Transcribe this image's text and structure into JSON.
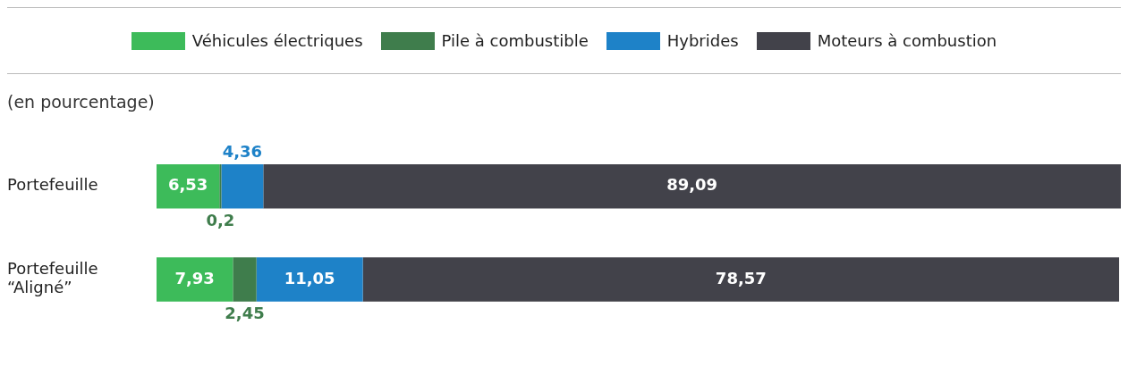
{
  "chart_data": {
    "type": "bar",
    "orientation": "horizontal",
    "stacked": true,
    "subtitle": "(en pourcentage)",
    "categories": [
      "Portefeuille",
      "Portefeuille “Aligné”"
    ],
    "series": [
      {
        "name": "Véhicules électriques",
        "color": "#3dbb5a",
        "values": [
          6.53,
          7.93
        ],
        "value_labels": [
          "6,53",
          "7,93"
        ]
      },
      {
        "name": "Pile à combustible",
        "color": "#3f7d4c",
        "values": [
          0.2,
          2.45
        ],
        "value_labels": [
          "0,2",
          "2,45"
        ]
      },
      {
        "name": "Hybrides",
        "color": "#1e82c8",
        "values": [
          4.36,
          11.05
        ],
        "value_labels": [
          "4,36",
          "11,05"
        ]
      },
      {
        "name": "Moteurs à combustion",
        "color": "#42424a",
        "values": [
          89.09,
          78.57
        ],
        "value_labels": [
          "89,09",
          "78,57"
        ]
      }
    ],
    "legend": "top"
  }
}
